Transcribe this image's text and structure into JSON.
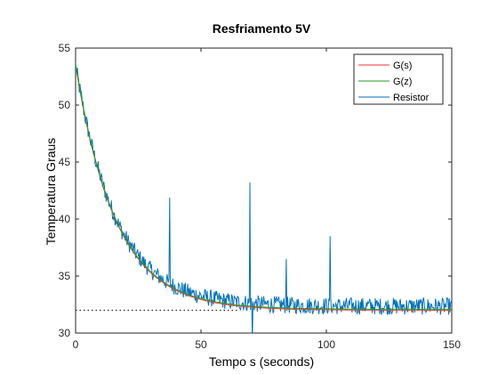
{
  "chart_data": {
    "type": "line",
    "title": "Resfriamento 5V",
    "xlabel": "Tempo s (seconds)",
    "ylabel": "Temperatura Graus",
    "xlim": [
      0,
      150
    ],
    "ylim": [
      30,
      55
    ],
    "xticks": [
      0,
      50,
      100,
      150
    ],
    "yticks": [
      30,
      35,
      40,
      45,
      50,
      55
    ],
    "grid": false,
    "legend_position": "top-right",
    "model": {
      "initial": 53.5,
      "final": 32.0,
      "time_constant": 16
    },
    "reference_line": {
      "y": 32,
      "x_end": 65,
      "style": "dotted",
      "color": "#000000"
    },
    "series": [
      {
        "name": "G(s)",
        "color": "#ff3333",
        "kind": "exponential_model"
      },
      {
        "name": "G(z)",
        "color": "#1e9e1e",
        "kind": "exponential_model"
      },
      {
        "name": "Resistor",
        "color": "#0072bd",
        "kind": "measured_noisy",
        "spikes": [
          {
            "x": 37.5,
            "y": 41.9
          },
          {
            "x": 69.5,
            "y": 43.2
          },
          {
            "x": 84.0,
            "y": 36.5
          },
          {
            "x": 101.5,
            "y": 38.5
          },
          {
            "x": 70.5,
            "y": 29.3
          }
        ]
      }
    ]
  }
}
